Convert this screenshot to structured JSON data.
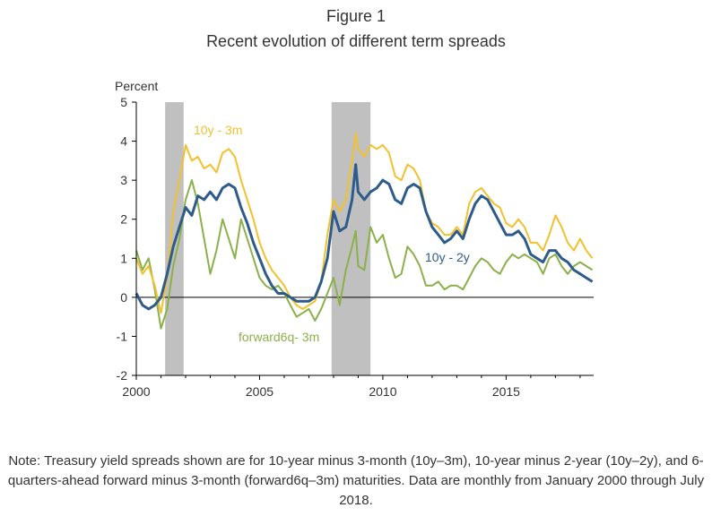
{
  "figure": {
    "label": "Figure 1",
    "subtitle": "Recent evolution of different term spreads"
  },
  "note": "Note: Treasury yield spreads shown are for 10-year minus 3-month (10y–3m), 10-year minus 2-year (10y–2y), and 6-quarters-ahead forward minus 3-month (forward6q–3m) maturities. Data are monthly from January 2000 through July 2018.",
  "chart_data": {
    "type": "line",
    "title": "Recent evolution of different term spreads",
    "ylabel": "Percent",
    "xlabel": "",
    "xlim": [
      2000,
      2018.55
    ],
    "ylim": [
      -2,
      5
    ],
    "x_ticks": [
      2000,
      2005,
      2010,
      2015
    ],
    "y_ticks": [
      -2,
      -1,
      0,
      1,
      2,
      3,
      4,
      5
    ],
    "x_tick_labels": [
      "2000",
      "2005",
      "2010",
      "2015"
    ],
    "y_tick_labels": [
      "-2",
      "-1",
      "0",
      "1",
      "2",
      "3",
      "4",
      "5"
    ],
    "zero_line": true,
    "recessions": [
      {
        "start": 2001.17,
        "end": 2001.92
      },
      {
        "start": 2007.92,
        "end": 2009.5
      }
    ],
    "colors": {
      "10y-3m": "#f2c12e",
      "10y-2y": "#2e5c8a",
      "forward6q-3m": "#8cb04a",
      "recession": "#c0c0c0"
    },
    "series": [
      {
        "name": "10y - 3m",
        "label": "10y - 3m",
        "color": "#f2c12e",
        "x": [
          2000.0,
          2000.25,
          2000.5,
          2000.75,
          2001.0,
          2001.25,
          2001.5,
          2001.75,
          2002.0,
          2002.25,
          2002.5,
          2002.75,
          2003.0,
          2003.25,
          2003.5,
          2003.75,
          2004.0,
          2004.25,
          2004.5,
          2004.75,
          2005.0,
          2005.25,
          2005.5,
          2005.75,
          2006.0,
          2006.25,
          2006.5,
          2006.75,
          2007.0,
          2007.25,
          2007.5,
          2007.75,
          2008.0,
          2008.25,
          2008.5,
          2008.75,
          2008.9,
          2009.0,
          2009.25,
          2009.5,
          2009.75,
          2010.0,
          2010.25,
          2010.5,
          2010.75,
          2011.0,
          2011.25,
          2011.5,
          2011.75,
          2012.0,
          2012.25,
          2012.5,
          2012.75,
          2013.0,
          2013.25,
          2013.5,
          2013.75,
          2014.0,
          2014.25,
          2014.5,
          2014.75,
          2015.0,
          2015.25,
          2015.5,
          2015.75,
          2016.0,
          2016.25,
          2016.5,
          2016.75,
          2017.0,
          2017.25,
          2017.5,
          2017.75,
          2018.0,
          2018.25,
          2018.5
        ],
        "values": [
          1.0,
          0.6,
          0.8,
          0.3,
          -0.4,
          0.5,
          2.2,
          3.0,
          3.9,
          3.5,
          3.6,
          3.3,
          3.4,
          3.2,
          3.7,
          3.8,
          3.6,
          3.0,
          2.5,
          2.0,
          1.4,
          1.0,
          0.7,
          0.5,
          0.3,
          0.0,
          -0.2,
          -0.3,
          -0.2,
          -0.1,
          0.4,
          1.6,
          2.5,
          2.2,
          2.5,
          3.5,
          4.2,
          3.8,
          3.6,
          3.9,
          3.8,
          3.9,
          3.7,
          3.1,
          3.0,
          3.4,
          3.3,
          3.0,
          2.2,
          1.9,
          1.8,
          1.6,
          1.6,
          1.8,
          1.6,
          2.4,
          2.7,
          2.8,
          2.6,
          2.4,
          2.3,
          1.9,
          1.8,
          2.0,
          1.8,
          1.4,
          1.4,
          1.2,
          1.6,
          2.1,
          1.8,
          1.4,
          1.2,
          1.5,
          1.2,
          1.0
        ]
      },
      {
        "name": "10y - 2y",
        "label": "10y - 2y",
        "color": "#2e5c8a",
        "x": [
          2000.0,
          2000.25,
          2000.5,
          2000.75,
          2001.0,
          2001.25,
          2001.5,
          2001.75,
          2002.0,
          2002.25,
          2002.5,
          2002.75,
          2003.0,
          2003.25,
          2003.5,
          2003.75,
          2004.0,
          2004.25,
          2004.5,
          2004.75,
          2005.0,
          2005.25,
          2005.5,
          2005.75,
          2006.0,
          2006.25,
          2006.5,
          2006.75,
          2007.0,
          2007.25,
          2007.5,
          2007.75,
          2008.0,
          2008.25,
          2008.5,
          2008.75,
          2008.9,
          2009.0,
          2009.25,
          2009.5,
          2009.75,
          2010.0,
          2010.25,
          2010.5,
          2010.75,
          2011.0,
          2011.25,
          2011.5,
          2011.75,
          2012.0,
          2012.25,
          2012.5,
          2012.75,
          2013.0,
          2013.25,
          2013.5,
          2013.75,
          2014.0,
          2014.25,
          2014.5,
          2014.75,
          2015.0,
          2015.25,
          2015.5,
          2015.75,
          2016.0,
          2016.25,
          2016.5,
          2016.75,
          2017.0,
          2017.25,
          2017.5,
          2017.75,
          2018.0,
          2018.25,
          2018.5
        ],
        "values": [
          0.1,
          -0.2,
          -0.3,
          -0.2,
          0.0,
          0.6,
          1.3,
          1.8,
          2.3,
          2.1,
          2.6,
          2.5,
          2.7,
          2.5,
          2.8,
          2.9,
          2.8,
          2.3,
          1.9,
          1.4,
          1.0,
          0.6,
          0.3,
          0.1,
          0.1,
          0.0,
          -0.1,
          -0.1,
          -0.1,
          0.0,
          0.4,
          1.0,
          2.2,
          1.7,
          1.8,
          2.5,
          3.4,
          2.7,
          2.5,
          2.7,
          2.8,
          3.0,
          2.9,
          2.5,
          2.4,
          2.8,
          2.9,
          2.8,
          2.2,
          1.8,
          1.6,
          1.4,
          1.5,
          1.7,
          1.5,
          2.0,
          2.4,
          2.6,
          2.5,
          2.2,
          1.9,
          1.6,
          1.6,
          1.7,
          1.5,
          1.1,
          1.0,
          0.9,
          1.2,
          1.2,
          1.0,
          0.9,
          0.7,
          0.6,
          0.5,
          0.4
        ]
      },
      {
        "name": "forward6q - 3m",
        "label": "forward6q- 3m",
        "color": "#8cb04a",
        "x": [
          2000.0,
          2000.25,
          2000.5,
          2000.75,
          2001.0,
          2001.25,
          2001.5,
          2001.75,
          2002.0,
          2002.25,
          2002.5,
          2002.75,
          2003.0,
          2003.25,
          2003.5,
          2003.75,
          2004.0,
          2004.25,
          2004.5,
          2004.75,
          2005.0,
          2005.25,
          2005.5,
          2005.75,
          2006.0,
          2006.25,
          2006.5,
          2006.75,
          2007.0,
          2007.25,
          2007.5,
          2007.75,
          2008.0,
          2008.25,
          2008.5,
          2008.75,
          2008.9,
          2009.0,
          2009.25,
          2009.5,
          2009.75,
          2010.0,
          2010.25,
          2010.5,
          2010.75,
          2011.0,
          2011.25,
          2011.5,
          2011.75,
          2012.0,
          2012.25,
          2012.5,
          2012.75,
          2013.0,
          2013.25,
          2013.5,
          2013.75,
          2014.0,
          2014.25,
          2014.5,
          2014.75,
          2015.0,
          2015.25,
          2015.5,
          2015.75,
          2016.0,
          2016.25,
          2016.5,
          2016.75,
          2017.0,
          2017.25,
          2017.5,
          2017.75,
          2018.0,
          2018.25,
          2018.5
        ],
        "values": [
          1.2,
          0.7,
          1.0,
          0.2,
          -0.8,
          -0.3,
          0.8,
          1.5,
          2.5,
          3.0,
          2.4,
          1.5,
          0.6,
          1.2,
          2.0,
          1.5,
          1.0,
          2.0,
          1.5,
          1.0,
          0.5,
          0.3,
          0.2,
          0.3,
          0.1,
          -0.2,
          -0.5,
          -0.4,
          -0.3,
          -0.6,
          -0.3,
          0.1,
          0.5,
          -0.2,
          0.7,
          1.3,
          1.7,
          0.8,
          0.7,
          1.8,
          1.4,
          1.6,
          1.0,
          0.5,
          0.6,
          1.3,
          1.1,
          0.8,
          0.3,
          0.3,
          0.4,
          0.2,
          0.3,
          0.3,
          0.2,
          0.5,
          0.8,
          1.0,
          0.9,
          0.7,
          0.6,
          0.9,
          1.1,
          1.0,
          1.1,
          1.0,
          0.9,
          0.6,
          1.0,
          1.1,
          0.8,
          0.6,
          0.8,
          0.9,
          0.8,
          0.7
        ]
      }
    ],
    "annotations": [
      {
        "text": "10y - 3m",
        "series": "10y - 3m"
      },
      {
        "text": "10y - 2y",
        "series": "10y - 2y"
      },
      {
        "text": "forward6q- 3m",
        "series": "forward6q - 3m"
      }
    ]
  }
}
